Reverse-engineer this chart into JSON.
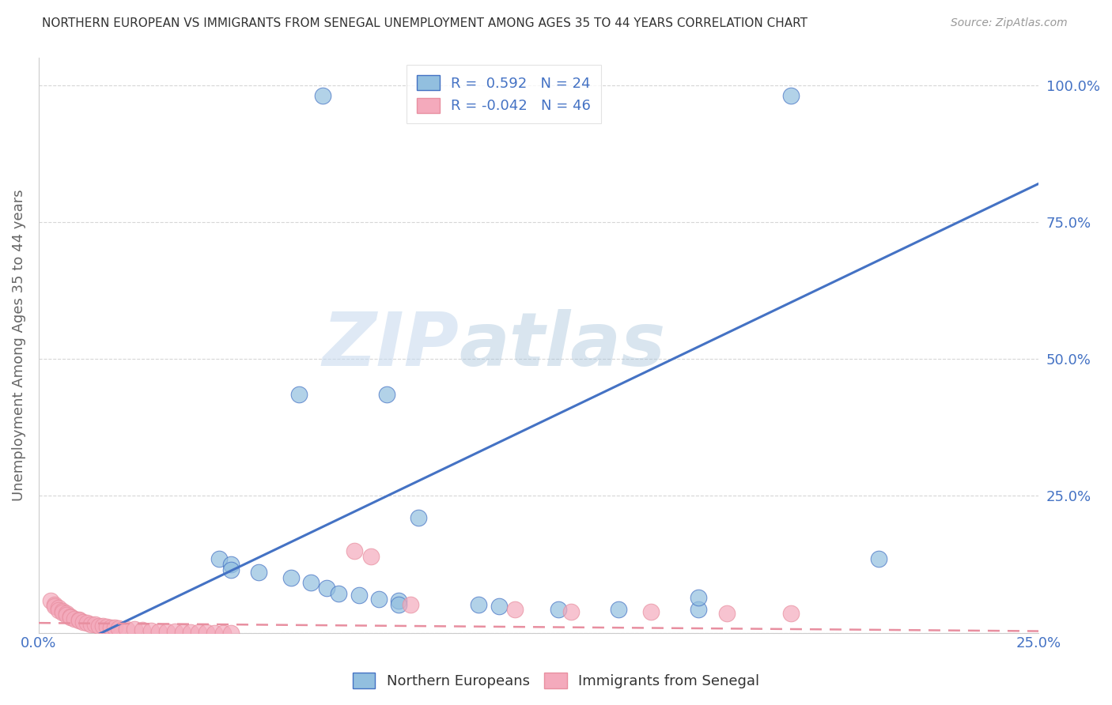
{
  "title": "NORTHERN EUROPEAN VS IMMIGRANTS FROM SENEGAL UNEMPLOYMENT AMONG AGES 35 TO 44 YEARS CORRELATION CHART",
  "source": "Source: ZipAtlas.com",
  "ylabel_label": "Unemployment Among Ages 35 to 44 years",
  "xlim": [
    0.0,
    0.25
  ],
  "ylim": [
    0.0,
    1.05
  ],
  "blue_R": "0.592",
  "blue_N": "24",
  "pink_R": "-0.042",
  "pink_N": "46",
  "blue_color": "#92BFDF",
  "pink_color": "#F4AABC",
  "blue_line_color": "#4472C4",
  "pink_line_color": "#E88FA0",
  "legend1_label": "Northern Europeans",
  "legend2_label": "Immigrants from Senegal",
  "watermark_zip": "ZIP",
  "watermark_atlas": "atlas",
  "blue_points": [
    [
      0.071,
      0.98
    ],
    [
      0.188,
      0.98
    ],
    [
      0.065,
      0.435
    ],
    [
      0.087,
      0.435
    ],
    [
      0.095,
      0.21
    ],
    [
      0.045,
      0.135
    ],
    [
      0.048,
      0.125
    ],
    [
      0.048,
      0.115
    ],
    [
      0.055,
      0.11
    ],
    [
      0.063,
      0.1
    ],
    [
      0.068,
      0.092
    ],
    [
      0.072,
      0.082
    ],
    [
      0.075,
      0.072
    ],
    [
      0.08,
      0.068
    ],
    [
      0.085,
      0.062
    ],
    [
      0.09,
      0.058
    ],
    [
      0.09,
      0.052
    ],
    [
      0.11,
      0.052
    ],
    [
      0.115,
      0.048
    ],
    [
      0.13,
      0.043
    ],
    [
      0.145,
      0.043
    ],
    [
      0.165,
      0.043
    ],
    [
      0.21,
      0.135
    ],
    [
      0.165,
      0.065
    ]
  ],
  "pink_points": [
    [
      0.003,
      0.058
    ],
    [
      0.004,
      0.052
    ],
    [
      0.004,
      0.048
    ],
    [
      0.005,
      0.045
    ],
    [
      0.005,
      0.042
    ],
    [
      0.006,
      0.04
    ],
    [
      0.006,
      0.037
    ],
    [
      0.007,
      0.035
    ],
    [
      0.007,
      0.032
    ],
    [
      0.008,
      0.03
    ],
    [
      0.008,
      0.028
    ],
    [
      0.009,
      0.026
    ],
    [
      0.01,
      0.024
    ],
    [
      0.01,
      0.022
    ],
    [
      0.011,
      0.02
    ],
    [
      0.012,
      0.018
    ],
    [
      0.013,
      0.016
    ],
    [
      0.014,
      0.015
    ],
    [
      0.015,
      0.013
    ],
    [
      0.016,
      0.012
    ],
    [
      0.017,
      0.011
    ],
    [
      0.018,
      0.01
    ],
    [
      0.019,
      0.009
    ],
    [
      0.02,
      0.008
    ],
    [
      0.022,
      0.007
    ],
    [
      0.024,
      0.006
    ],
    [
      0.026,
      0.005
    ],
    [
      0.028,
      0.004
    ],
    [
      0.03,
      0.003
    ],
    [
      0.032,
      0.002
    ],
    [
      0.034,
      0.002
    ],
    [
      0.036,
      0.001
    ],
    [
      0.038,
      0.001
    ],
    [
      0.04,
      0.001
    ],
    [
      0.042,
      0.001
    ],
    [
      0.044,
      0.0
    ],
    [
      0.046,
      0.0
    ],
    [
      0.048,
      0.0
    ],
    [
      0.079,
      0.15
    ],
    [
      0.083,
      0.14
    ],
    [
      0.093,
      0.052
    ],
    [
      0.119,
      0.043
    ],
    [
      0.133,
      0.038
    ],
    [
      0.153,
      0.038
    ],
    [
      0.172,
      0.036
    ],
    [
      0.188,
      0.035
    ]
  ],
  "blue_line_x": [
    0.0,
    0.25
  ],
  "blue_line_y": [
    -0.055,
    0.82
  ],
  "pink_line_x": [
    0.0,
    0.25
  ],
  "pink_line_y": [
    0.018,
    0.003
  ]
}
